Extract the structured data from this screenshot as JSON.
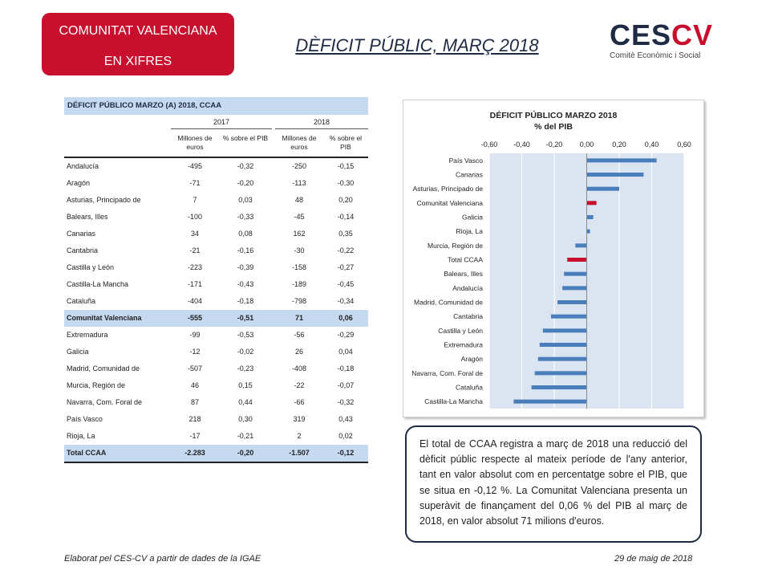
{
  "header": {
    "badge_line1": "COMUNITAT VALENCIANA",
    "badge_line2": "EN XIFRES",
    "title": "DÈFICIT PÚBLIC, MARÇ 2018",
    "logo_text_a": "CES",
    "logo_text_b": "CV",
    "logo_sub": "Comitè Econòmic i Social"
  },
  "table": {
    "title": "DÉFICIT PÚBLICO MARZO (A) 2018, CCAA",
    "year1": "2017",
    "year2": "2018",
    "col_millones": "Millones de euros",
    "col_pct": "% sobre el PIB",
    "rows": [
      {
        "name": "Andalucía",
        "m17": "-495",
        "p17": "-0,32",
        "m18": "-250",
        "p18": "-0,15"
      },
      {
        "name": "Aragón",
        "m17": "-71",
        "p17": "-0,20",
        "m18": "-113",
        "p18": "-0,30"
      },
      {
        "name": "Asturias, Principado de",
        "m17": "7",
        "p17": "0,03",
        "m18": "48",
        "p18": "0,20"
      },
      {
        "name": "Balears, Illes",
        "m17": "-100",
        "p17": "-0,33",
        "m18": "-45",
        "p18": "-0,14"
      },
      {
        "name": "Canarias",
        "m17": "34",
        "p17": "0,08",
        "m18": "162",
        "p18": "0,35"
      },
      {
        "name": "Cantabria",
        "m17": "-21",
        "p17": "-0,16",
        "m18": "-30",
        "p18": "-0,22"
      },
      {
        "name": "Castilla y León",
        "m17": "-223",
        "p17": "-0,39",
        "m18": "-158",
        "p18": "-0,27"
      },
      {
        "name": "Castilla-La Mancha",
        "m17": "-171",
        "p17": "-0,43",
        "m18": "-189",
        "p18": "-0,45"
      },
      {
        "name": "Cataluña",
        "m17": "-404",
        "p17": "-0,18",
        "m18": "-798",
        "p18": "-0,34"
      },
      {
        "name": "Comunitat Valenciana",
        "m17": "-555",
        "p17": "-0,51",
        "m18": "71",
        "p18": "0,06"
      },
      {
        "name": "Extremadura",
        "m17": "-99",
        "p17": "-0,53",
        "m18": "-56",
        "p18": "-0,29"
      },
      {
        "name": "Galicia",
        "m17": "-12",
        "p17": "-0,02",
        "m18": "26",
        "p18": "0,04"
      },
      {
        "name": "Madrid, Comunidad de",
        "m17": "-507",
        "p17": "-0,23",
        "m18": "-408",
        "p18": "-0,18"
      },
      {
        "name": "Murcia, Región de",
        "m17": "46",
        "p17": "0,15",
        "m18": "-22",
        "p18": "-0,07"
      },
      {
        "name": "Navarra, Com. Foral de",
        "m17": "87",
        "p17": "0,44",
        "m18": "-66",
        "p18": "-0,32"
      },
      {
        "name": "País Vasco",
        "m17": "218",
        "p17": "0,30",
        "m18": "319",
        "p18": "0,43"
      },
      {
        "name": "Rioja, La",
        "m17": "-17",
        "p17": "-0,21",
        "m18": "2",
        "p18": "0,02"
      },
      {
        "name": "Total CCAA",
        "m17": "-2.283",
        "p17": "-0,20",
        "m18": "-1.507",
        "p18": "-0,12"
      }
    ]
  },
  "chart_data": {
    "type": "bar",
    "orientation": "horizontal",
    "title": "DÉFICIT PÚBLICO MARZO 2018",
    "subtitle": "% del PIB",
    "xlim": [
      -0.6,
      0.6
    ],
    "ticks": [
      "-0,60",
      "-0,40",
      "-0,20",
      "0,00",
      "0,20",
      "0,40",
      "0,60"
    ],
    "grid": true,
    "categories": [
      "País Vasco",
      "Canarias",
      "Asturias, Principado de",
      "Comunitat Valenciana",
      "Galicia",
      "Rioja, La",
      "Murcia, Región de",
      "Total CCAA",
      "Balears, Illes",
      "Andalucía",
      "Madrid, Comunidad de",
      "Cantabria",
      "Castilla y León",
      "Extremadura",
      "Aragón",
      "Navarra, Com. Foral de",
      "Cataluña",
      "Castilla-La Mancha"
    ],
    "values": [
      0.43,
      0.35,
      0.2,
      0.06,
      0.04,
      0.02,
      -0.07,
      -0.12,
      -0.14,
      -0.15,
      -0.18,
      -0.22,
      -0.27,
      -0.29,
      -0.3,
      -0.32,
      -0.34,
      -0.45
    ],
    "highlight": [
      "Comunitat Valenciana",
      "Total CCAA"
    ],
    "colors": {
      "default": "#4a7ebb",
      "highlight": "#c8102e",
      "plot_bg": "#dbe5f1"
    }
  },
  "note": {
    "text": "El total de CCAA registra a març de 2018 una reducció del dèficit públic respecte al mateix període de l'any anterior, tant en valor absolut com en percentatge sobre el PIB, que se situa en -0,12 %. La Comunitat Valenciana presenta un superàvit de finançament del 0,06 % del PIB al març de 2018, en valor absolut 71 milions d'euros."
  },
  "footer": {
    "left": "Elaborat pel CES-CV a partir de dades de la IGAE",
    "right": "29 de maig de 2018"
  }
}
